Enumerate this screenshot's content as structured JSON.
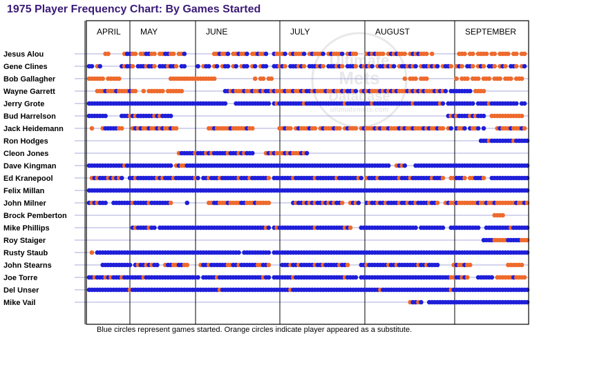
{
  "colors": {
    "started": "#1f1fd9",
    "substitute": "#ee6a2c",
    "title": "#3a1a78",
    "gridline": "#8c8cd0"
  },
  "watermark": {
    "line1": "Ultimate",
    "line2": "Mets",
    "line3": "Database",
    "url": "ultimatemets.com"
  },
  "chart_data": {
    "type": "scatter",
    "title": "1975 Player Frequency Chart: By Games Started",
    "footnote": "Blue circles represent games started. Orange circles indicate player appeared as a substitute.",
    "months": [
      "APRIL",
      "MAY",
      "JUNE",
      "JULY",
      "AUGUST",
      "SEPTEMBER"
    ],
    "month_start_game": [
      0,
      12,
      37,
      68,
      99,
      132
    ],
    "total_games": 162,
    "legend": {
      "started": "blue",
      "substitute": "orange"
    },
    "players": [
      {
        "name": "Jesus Alou",
        "games": [
          {
            "start": 6,
            "end": 8,
            "p": "ssxs"
          },
          {
            "start": 13,
            "end": 35,
            "p": "sbbssxs"
          },
          {
            "start": 46,
            "end": 66,
            "p": "ssbssbx"
          },
          {
            "start": 68,
            "end": 98,
            "p": "bsssbxs"
          },
          {
            "start": 102,
            "end": 126,
            "p": "sbsbsssx"
          },
          {
            "start": 136,
            "end": 160,
            "p": "sssxssxs"
          }
        ]
      },
      {
        "name": "Gene Clines",
        "games": [
          {
            "start": 0,
            "end": 4,
            "p": "bbxs"
          },
          {
            "start": 12,
            "end": 35,
            "p": "bsbbsxbb"
          },
          {
            "start": 40,
            "end": 66,
            "p": "bxsbbxs"
          },
          {
            "start": 68,
            "end": 98,
            "p": "bbsbsxb"
          },
          {
            "start": 100,
            "end": 131,
            "p": "bsbsbxsb"
          },
          {
            "start": 132,
            "end": 160,
            "p": "bsxsbsxb"
          }
        ]
      },
      {
        "name": "Bob Gallagher",
        "games": [
          {
            "start": 0,
            "end": 11,
            "p": "ssssssxss"
          },
          {
            "start": 30,
            "end": 46,
            "p": "ssssssss"
          },
          {
            "start": 61,
            "end": 67,
            "p": "sxs"
          },
          {
            "start": 116,
            "end": 124,
            "p": "sxss"
          },
          {
            "start": 135,
            "end": 160,
            "p": "sxsssxss"
          }
        ]
      },
      {
        "name": "Wayne Garrett",
        "games": [
          {
            "start": 3,
            "end": 17,
            "p": "sssbsssbs"
          },
          {
            "start": 20,
            "end": 34,
            "p": "sxsssss"
          },
          {
            "start": 50,
            "end": 98,
            "p": "bbsbsssbssbssbs"
          },
          {
            "start": 100,
            "end": 131,
            "p": "sbsbsssbsb"
          },
          {
            "start": 133,
            "end": 140,
            "p": "bbbbb"
          },
          {
            "start": 142,
            "end": 145,
            "p": "ss"
          }
        ]
      },
      {
        "name": "Jerry Grote",
        "games": [
          {
            "start": 0,
            "end": 50,
            "p": "bbbbbbbbbbbbbbbbbbbbbbbbb"
          },
          {
            "start": 54,
            "end": 66,
            "p": "bbbbbb"
          },
          {
            "start": 68,
            "end": 130,
            "p": "bsbbbbbbbbbsbbbbbbbbbbbbb"
          },
          {
            "start": 132,
            "end": 160,
            "p": "bbbbbbbbbbxbbbbs"
          }
        ]
      },
      {
        "name": "Bud Harrelson",
        "games": [
          {
            "start": 0,
            "end": 6,
            "p": "bbbbbb"
          },
          {
            "start": 12,
            "end": 30,
            "p": "bbbsbsbbb"
          },
          {
            "start": 132,
            "end": 145,
            "p": "bsbsbbb"
          },
          {
            "start": 148,
            "end": 159,
            "p": "sssss"
          }
        ]
      },
      {
        "name": "Jack Heidemann",
        "games": [
          {
            "start": 1,
            "end": 1,
            "p": "s"
          },
          {
            "start": 5,
            "end": 12,
            "p": "sbbbbbs"
          },
          {
            "start": 16,
            "end": 32,
            "p": "sbsbssbs"
          },
          {
            "start": 44,
            "end": 60,
            "p": "ssbsss"
          },
          {
            "start": 70,
            "end": 98,
            "p": "ssbssxsbs"
          },
          {
            "start": 100,
            "end": 130,
            "p": "sbsssbsbs"
          },
          {
            "start": 132,
            "end": 145,
            "p": "sbxbs"
          },
          {
            "start": 150,
            "end": 160,
            "p": "sbss"
          }
        ]
      },
      {
        "name": "Ron Hodges",
        "games": [
          {
            "start": 144,
            "end": 161,
            "p": "bbbsbbbbb"
          }
        ]
      },
      {
        "name": "Cleon Jones",
        "games": [
          {
            "start": 33,
            "end": 60,
            "p": "sbbbbbsbbbsb"
          },
          {
            "start": 65,
            "end": 80,
            "p": "sbsbss"
          }
        ]
      },
      {
        "name": "Dave Kingman",
        "games": [
          {
            "start": 0,
            "end": 13,
            "p": "bbbbbbbbbbbbbs"
          },
          {
            "start": 14,
            "end": 30,
            "p": "bbbbbbbbbb"
          },
          {
            "start": 32,
            "end": 36,
            "p": "sbs"
          },
          {
            "start": 37,
            "end": 60,
            "p": "bbbbbbbbbbbbbb"
          },
          {
            "start": 61,
            "end": 110,
            "p": "bbbbbbbbbbbbbbbbbbbbbbbbb"
          },
          {
            "start": 113,
            "end": 116,
            "p": "sb"
          },
          {
            "start": 120,
            "end": 161,
            "p": "bbbbbbbbbbbbbbbbbbbbbbbb"
          }
        ]
      },
      {
        "name": "Ed Kranepool",
        "games": [
          {
            "start": 1,
            "end": 12,
            "p": "sbsbbbsb"
          },
          {
            "start": 15,
            "end": 40,
            "p": "bbsbbbbbbbsbsb"
          },
          {
            "start": 42,
            "end": 66,
            "p": "bbsbbbsbbbb"
          },
          {
            "start": 68,
            "end": 100,
            "p": "bbbbbbbsbbbbbbbs"
          },
          {
            "start": 102,
            "end": 130,
            "p": "sbbbsbbbbbbb"
          },
          {
            "start": 133,
            "end": 145,
            "p": "ssbbbsx"
          },
          {
            "start": 148,
            "end": 161,
            "p": "bbbbbbbbbb"
          }
        ]
      },
      {
        "name": "Felix Millan",
        "games": [
          {
            "start": 0,
            "end": 161,
            "p": "b"
          }
        ]
      },
      {
        "name": "John Milner",
        "games": [
          {
            "start": 0,
            "end": 6,
            "p": "bsbsbb"
          },
          {
            "start": 9,
            "end": 30,
            "p": "bbbbbbbsbbbbbs"
          },
          {
            "start": 36,
            "end": 36,
            "p": "b"
          },
          {
            "start": 44,
            "end": 64,
            "p": "ssbbsssbss"
          },
          {
            "start": 65,
            "end": 66,
            "p": "s"
          },
          {
            "start": 75,
            "end": 93,
            "p": "bsbbsbs"
          },
          {
            "start": 96,
            "end": 99,
            "p": "sb"
          },
          {
            "start": 102,
            "end": 128,
            "p": "bsbbsbbsbbb"
          },
          {
            "start": 131,
            "end": 161,
            "p": "sbssbsssssssbs"
          }
        ]
      },
      {
        "name": "Brock Pemberton",
        "games": [
          {
            "start": 149,
            "end": 152,
            "p": "ss"
          }
        ]
      },
      {
        "name": "Mike Phillips",
        "games": [
          {
            "start": 16,
            "end": 24,
            "p": "bsbbb"
          },
          {
            "start": 26,
            "end": 63,
            "p": "bbbbbbbbbbbbbbbbbbbbbbbb"
          },
          {
            "start": 64,
            "end": 66,
            "p": "bs"
          },
          {
            "start": 68,
            "end": 92,
            "p": "bsbbbbbbbbbbbb"
          },
          {
            "start": 92,
            "end": 96,
            "p": "sb"
          },
          {
            "start": 100,
            "end": 120,
            "p": "bbbbbbbbbbbbbbbb"
          },
          {
            "start": 122,
            "end": 130,
            "p": "bbbbb"
          },
          {
            "start": 133,
            "end": 143,
            "p": "bbbbbbb"
          },
          {
            "start": 146,
            "end": 161,
            "p": "bbbbbbbbbsb"
          }
        ]
      },
      {
        "name": "Roy Staiger",
        "games": [
          {
            "start": 145,
            "end": 161,
            "p": "bbbbsssssb"
          }
        ]
      },
      {
        "name": "Rusty Staub",
        "games": [
          {
            "start": 1,
            "end": 1,
            "p": "s"
          },
          {
            "start": 3,
            "end": 20,
            "p": "bbbbbbbbbbbbbbbbbb"
          },
          {
            "start": 21,
            "end": 55,
            "p": "bbbbbbbbbbbbbbbbbbbbbbbb"
          },
          {
            "start": 57,
            "end": 66,
            "p": "bbbbbbb"
          },
          {
            "start": 68,
            "end": 161,
            "p": "bbbbbbbbbbbbbbbbbbbbbbbbbbbbbbbbbbbbbbbbbbbb"
          }
        ]
      },
      {
        "name": "John Stearns",
        "games": [
          {
            "start": 5,
            "end": 15,
            "p": "bbbbbb"
          },
          {
            "start": 17,
            "end": 25,
            "p": "bsbbs"
          },
          {
            "start": 28,
            "end": 36,
            "p": "sbbs"
          },
          {
            "start": 41,
            "end": 66,
            "p": "sbbsbbbbbbs"
          },
          {
            "start": 71,
            "end": 95,
            "p": "bbbsbbsbb"
          },
          {
            "start": 100,
            "end": 128,
            "p": "bbsbbbbbbbs"
          },
          {
            "start": 134,
            "end": 140,
            "p": "sbs"
          },
          {
            "start": 154,
            "end": 159,
            "p": "sss"
          }
        ]
      },
      {
        "name": "Joe Torre",
        "games": [
          {
            "start": 0,
            "end": 12,
            "p": "bbsbbbsbsb"
          },
          {
            "start": 13,
            "end": 40,
            "p": "bbbbbbbsbbbbbbbbbbbbb"
          },
          {
            "start": 42,
            "end": 66,
            "p": "bbbbbsbbbbbbbbbbb"
          },
          {
            "start": 68,
            "end": 98,
            "p": "bbbbbbbsbbbbbbbbbbb"
          },
          {
            "start": 100,
            "end": 131,
            "p": "bbbbbbbbbbbbbbbbbbbbb"
          },
          {
            "start": 132,
            "end": 139,
            "p": "bssbbs"
          },
          {
            "start": 143,
            "end": 148,
            "p": "bbb"
          },
          {
            "start": 150,
            "end": 160,
            "p": "ssssssb"
          }
        ]
      },
      {
        "name": "Del Unser",
        "games": [
          {
            "start": 0,
            "end": 161,
            "p": "bbbbbbbbbbbbbbbsbbbbbbbbbbbbbbbbbbbbbbbbbbbbbbbbsbbbbbbbbbb"
          }
        ]
      },
      {
        "name": "Mike Vail",
        "games": [
          {
            "start": 118,
            "end": 122,
            "p": "sbb"
          },
          {
            "start": 125,
            "end": 161,
            "p": "bbbbbbbbbbbbbbbbbbbbbbbbbbbbbbbbbbbb"
          }
        ]
      }
    ]
  }
}
